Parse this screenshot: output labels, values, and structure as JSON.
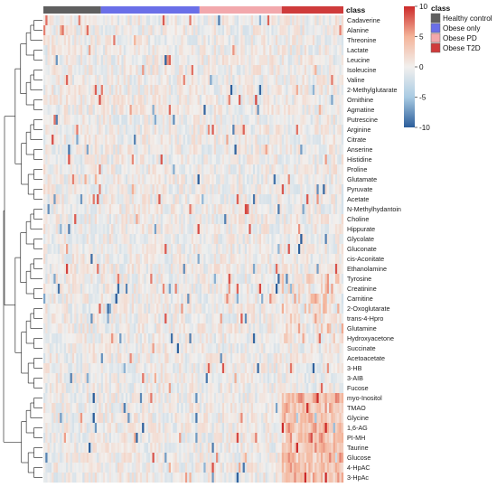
{
  "chart_data": {
    "type": "heatmap",
    "class_bar_label": "class",
    "legend_title": "class",
    "groups": [
      {
        "name": "Healthy control",
        "color": "#5f5f5f",
        "n_samples": 28
      },
      {
        "name": "Obese only",
        "color": "#6a6fe8",
        "n_samples": 48
      },
      {
        "name": "Obese PD",
        "color": "#f2a8ac",
        "n_samples": 40
      },
      {
        "name": "Obese T2D",
        "color": "#cf3b3b",
        "n_samples": 30
      }
    ],
    "rows": [
      "Cadaverine",
      "Alanine",
      "Threonine",
      "Lactate",
      "Leucine",
      "Isoleucine",
      "Valine",
      "2-Methylglutarate",
      "Ornithine",
      "Agmatine",
      "Putrescine",
      "Arginine",
      "Citrate",
      "Anserine",
      "Histidine",
      "Proline",
      "Glutamate",
      "Pyruvate",
      "Acetate",
      "N-Methylhydantoin",
      "Choline",
      "Hippurate",
      "Glycolate",
      "Gluconate",
      "cis-Aconitate",
      "Ethanolamine",
      "Tyrosine",
      "Creatinine",
      "Carnitine",
      "2-Oxoglutarate",
      "trans-4-Hpro",
      "Glutamine",
      "Hydroxyacetone",
      "Succinate",
      "Acetoacetate",
      "3-HB",
      "3-AIB",
      "Fucose",
      "myo-Inositol",
      "TMAO",
      "Glycine",
      "1,6-AG",
      "PI-MH",
      "Taurine",
      "Glucose",
      "4-HpAC",
      "3-HpAc"
    ],
    "colorbar": {
      "min": -10,
      "max": 10,
      "ticks": [
        10,
        5,
        0,
        -5,
        -10
      ],
      "colors": [
        "#2b5d9a",
        "#a9cbe3",
        "#f2f0ee",
        "#f4b49a",
        "#cc2a2a"
      ]
    },
    "dendrogram": "rows"
  }
}
